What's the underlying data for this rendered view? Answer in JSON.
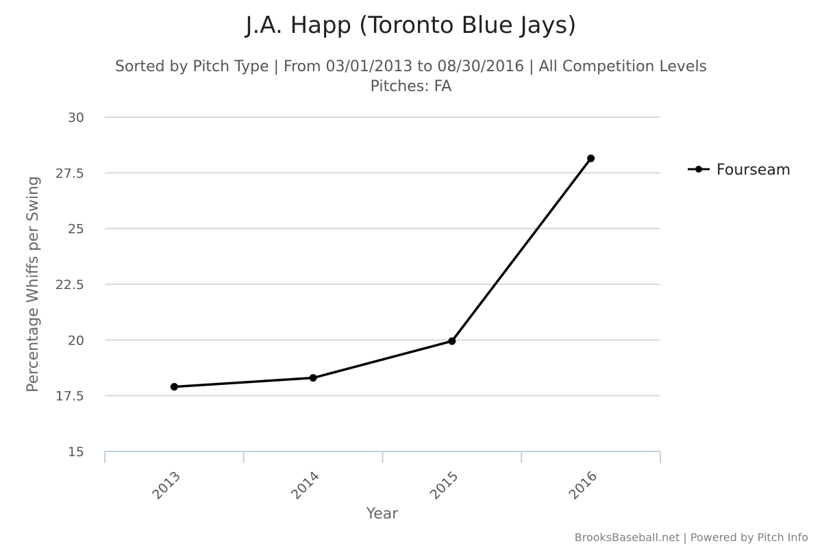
{
  "chart_data": {
    "type": "line",
    "title": "J.A. Happ (Toronto Blue Jays)",
    "subtitle_line1": "Sorted by Pitch Type | From 03/01/2013 to 08/30/2016 | All Competition Levels",
    "subtitle_line2": "Pitches: FA",
    "xlabel": "Year",
    "ylabel": "Percentage Whiffs per Swing",
    "categories": [
      "2013",
      "2014",
      "2015",
      "2016"
    ],
    "ylim": [
      15,
      30
    ],
    "yticks": [
      15,
      17.5,
      20,
      22.5,
      25,
      27.5,
      30
    ],
    "ytick_labels": [
      "15",
      "17.5",
      "20",
      "22.5",
      "25",
      "27.5",
      "30"
    ],
    "grid": true,
    "legend_position": "right",
    "series": [
      {
        "name": "Fourseam",
        "color": "#000000",
        "values": [
          17.9,
          18.3,
          19.95,
          28.15
        ]
      }
    ],
    "credits": "BrooksBaseball.net | Powered by Pitch Info"
  }
}
